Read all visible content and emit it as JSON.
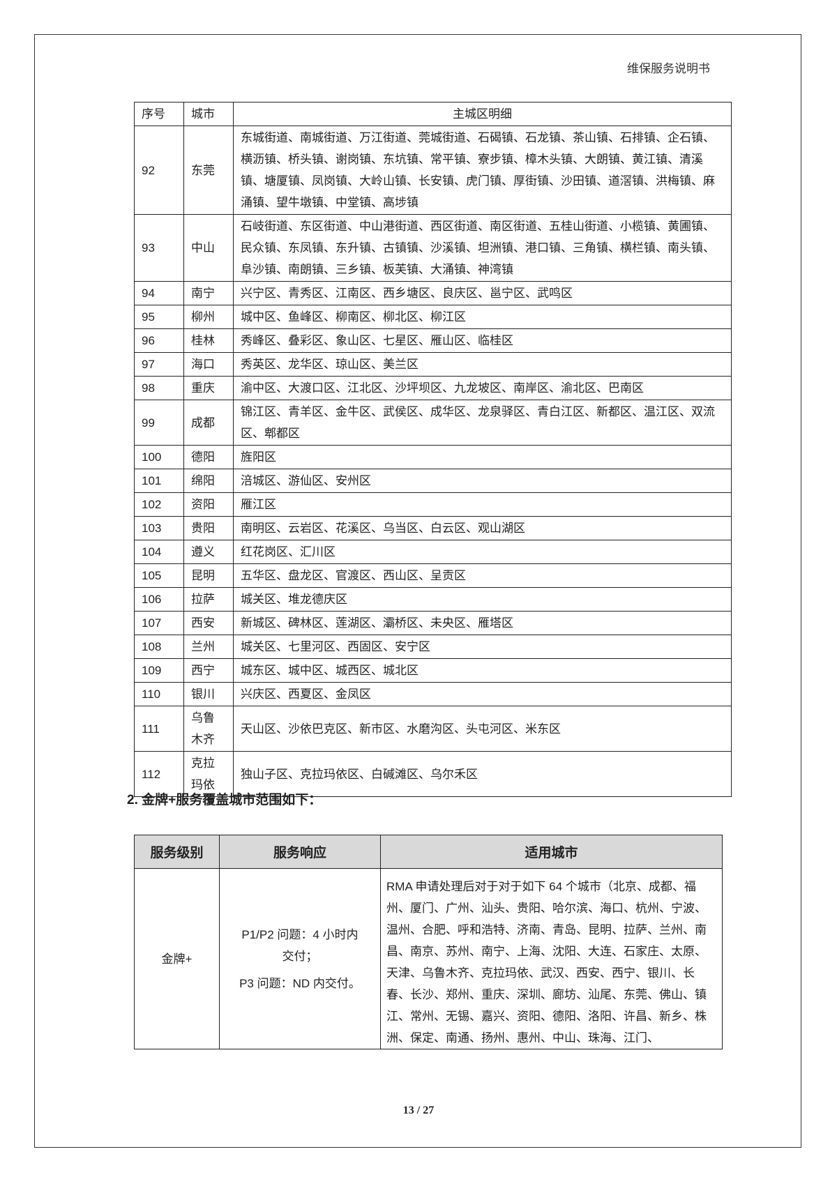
{
  "header": {
    "title": "维保服务说明书"
  },
  "table1": {
    "columns": [
      "序号",
      "城市",
      "主城区明细"
    ],
    "rows": [
      {
        "no": "92",
        "city": "东莞",
        "detail": "东城街道、南城街道、万江街道、莞城街道、石碣镇、石龙镇、茶山镇、石排镇、企石镇、横沥镇、桥头镇、谢岗镇、东坑镇、常平镇、寮步镇、樟木头镇、大朗镇、黄江镇、清溪镇、塘厦镇、凤岗镇、大岭山镇、长安镇、虎门镇、厚街镇、沙田镇、道滘镇、洪梅镇、麻涌镇、望牛墩镇、中堂镇、高埗镇"
      },
      {
        "no": "93",
        "city": "中山",
        "detail": "石岐街道、东区街道、中山港街道、西区街道、南区街道、五桂山街道、小榄镇、黄圃镇、民众镇、东凤镇、东升镇、古镇镇、沙溪镇、坦洲镇、港口镇、三角镇、横栏镇、南头镇、阜沙镇、南朗镇、三乡镇、板芙镇、大涌镇、神湾镇"
      },
      {
        "no": "94",
        "city": "南宁",
        "detail": "兴宁区、青秀区、江南区、西乡塘区、良庆区、邕宁区、武鸣区"
      },
      {
        "no": "95",
        "city": "柳州",
        "detail": "城中区、鱼峰区、柳南区、柳北区、柳江区"
      },
      {
        "no": "96",
        "city": "桂林",
        "detail": "秀峰区、叠彩区、象山区、七星区、雁山区、临桂区"
      },
      {
        "no": "97",
        "city": "海口",
        "detail": "秀英区、龙华区、琼山区、美兰区"
      },
      {
        "no": "98",
        "city": "重庆",
        "detail": "渝中区、大渡口区、江北区、沙坪坝区、九龙坡区、南岸区、渝北区、巴南区"
      },
      {
        "no": "99",
        "city": "成都",
        "detail": "锦江区、青羊区、金牛区、武侯区、成华区、龙泉驿区、青白江区、新都区、温江区、双流区、郫都区"
      },
      {
        "no": "100",
        "city": "德阳",
        "detail": "旌阳区"
      },
      {
        "no": "101",
        "city": "绵阳",
        "detail": "涪城区、游仙区、安州区"
      },
      {
        "no": "102",
        "city": "资阳",
        "detail": "雁江区"
      },
      {
        "no": "103",
        "city": "贵阳",
        "detail": "南明区、云岩区、花溪区、乌当区、白云区、观山湖区"
      },
      {
        "no": "104",
        "city": "遵义",
        "detail": "红花岗区、汇川区"
      },
      {
        "no": "105",
        "city": "昆明",
        "detail": "五华区、盘龙区、官渡区、西山区、呈贡区"
      },
      {
        "no": "106",
        "city": "拉萨",
        "detail": "城关区、堆龙德庆区"
      },
      {
        "no": "107",
        "city": "西安",
        "detail": "新城区、碑林区、莲湖区、灞桥区、未央区、雁塔区"
      },
      {
        "no": "108",
        "city": "兰州",
        "detail": "城关区、七里河区、西固区、安宁区"
      },
      {
        "no": "109",
        "city": "西宁",
        "detail": "城东区、城中区、城西区、城北区"
      },
      {
        "no": "110",
        "city": "银川",
        "detail": "兴庆区、西夏区、金凤区"
      },
      {
        "no": "111",
        "city": "乌鲁木齐",
        "detail": "天山区、沙依巴克区、新市区、水磨沟区、头屯河区、米东区"
      },
      {
        "no": "112",
        "city": "克拉玛依",
        "detail": "独山子区、克拉玛依区、白碱滩区、乌尔禾区"
      }
    ]
  },
  "section2": {
    "heading": "2. 金牌+服务覆盖城市范围如下："
  },
  "table2": {
    "columns": [
      "服务级别",
      "服务响应",
      "适用城市"
    ],
    "row": {
      "level": "金牌+",
      "response_line1": "P1/P2 问题：4 小时内交付；",
      "response_line2": "P3 问题：ND 内交付。",
      "cities": "RMA 申请处理后对于对于如下 64 个城市（北京、成都、福州、厦门、广州、汕头、贵阳、哈尔滨、海口、杭州、宁波、温州、合肥、呼和浩特、济南、青岛、昆明、拉萨、兰州、南昌、南京、苏州、南宁、上海、沈阳、大连、石家庄、太原、天津、乌鲁木齐、克拉玛依、武汉、西安、西宁、银川、长春、长沙、郑州、重庆、深圳、廊坊、汕尾、东莞、佛山、镇江、常州、无锡、嘉兴、资阳、德阳、洛阳、许昌、新乡、株洲、保定、南通、扬州、惠州、中山、珠海、江门、"
    }
  },
  "footer": {
    "page": "13 / 27"
  }
}
